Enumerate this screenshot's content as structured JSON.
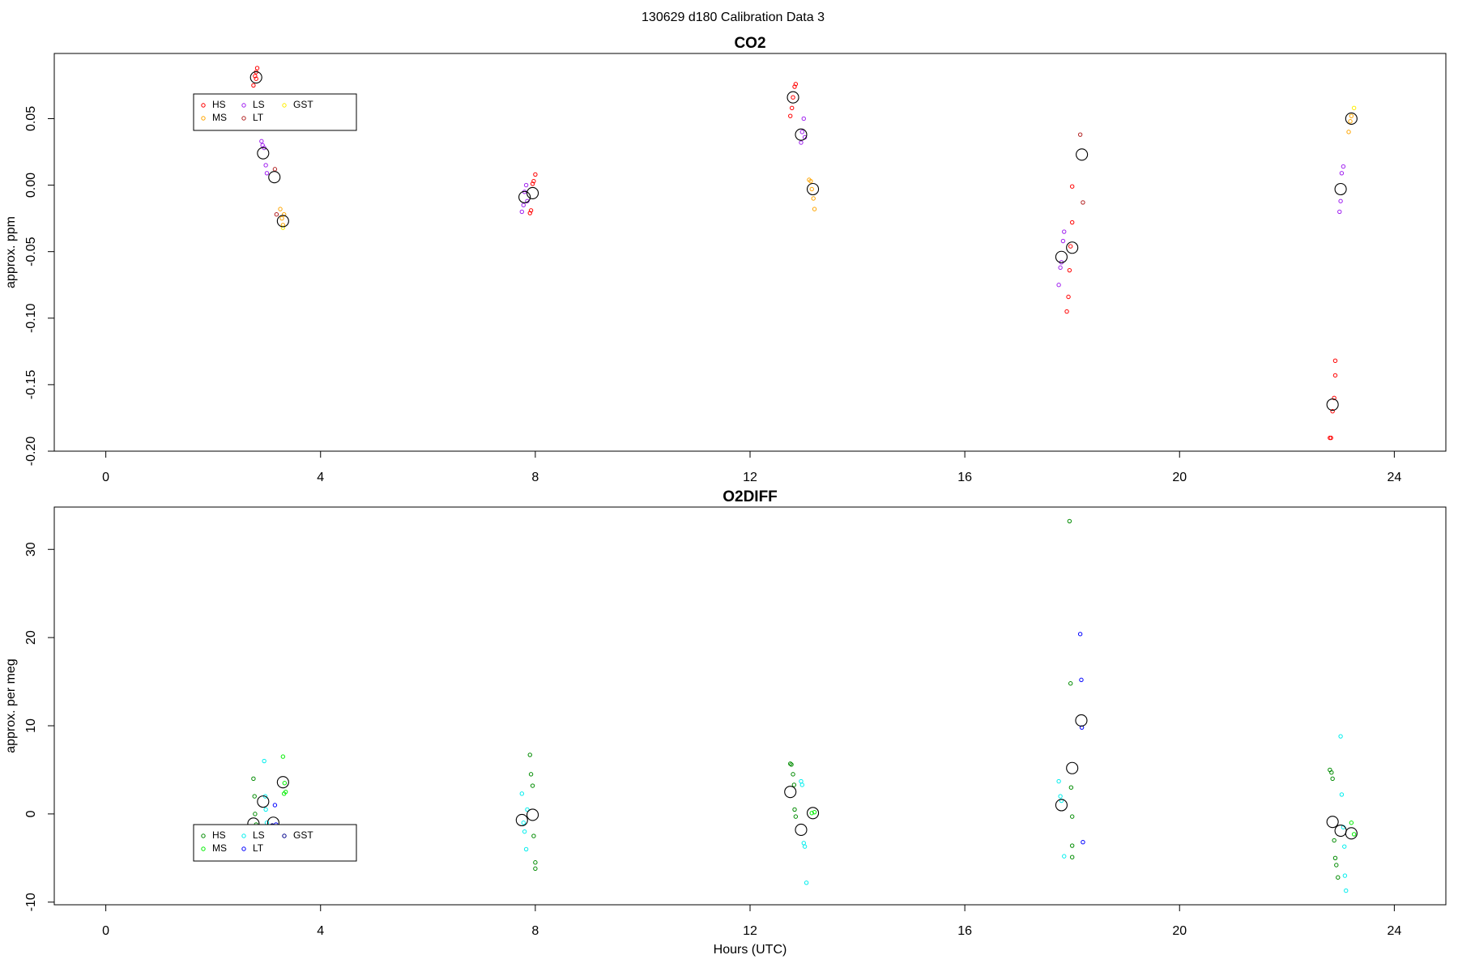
{
  "title": "130629   d180   Calibration Data 3",
  "chart_data": [
    {
      "type": "scatter",
      "title": "CO2",
      "ylabel": "approx. ppm",
      "xlim": [
        -0.96,
        24.96
      ],
      "ylim": [
        -0.2,
        0.099
      ],
      "xticks": [
        0,
        4,
        8,
        12,
        16,
        20,
        24
      ],
      "yticks": [
        {
          "value": -0.2,
          "label": "-0.20"
        },
        -0.15,
        {
          "value": -0.1,
          "label": "-0.10"
        },
        -0.05,
        {
          "value": 0,
          "label": "0.00"
        },
        0.05
      ],
      "legend_position": "topleft",
      "series": [
        {
          "name": "HS",
          "color": "#ff0000",
          "x": [
            2.75,
            2.78,
            2.8,
            2.82,
            2.8,
            7.9,
            7.92,
            7.95,
            7.97,
            8.0,
            12.75,
            12.78,
            12.8,
            12.83,
            12.85,
            17.9,
            17.93,
            17.95,
            17.97,
            18.0,
            18.0,
            22.8,
            22.82,
            22.85,
            22.88,
            22.9,
            22.9
          ],
          "values": [
            0.075,
            0.082,
            0.08,
            0.088,
            0.085,
            -0.021,
            -0.019,
            0.001,
            0.003,
            0.008,
            0.052,
            0.058,
            0.066,
            0.074,
            0.076,
            -0.095,
            -0.084,
            -0.064,
            -0.046,
            -0.028,
            -0.001,
            -0.19,
            -0.19,
            -0.17,
            -0.16,
            -0.143,
            -0.132
          ]
        },
        {
          "name": "MS",
          "color": "#ffa500",
          "x": [
            3.25,
            3.28,
            3.3,
            3.32,
            13.1,
            13.13,
            13.15,
            13.18,
            13.2,
            23.15,
            23.18,
            23.2
          ],
          "values": [
            -0.018,
            -0.025,
            -0.03,
            -0.022,
            0.004,
            0.003,
            -0.003,
            -0.01,
            -0.018,
            0.04,
            0.048,
            0.052
          ]
        },
        {
          "name": "LS",
          "color": "#a020f0",
          "x": [
            2.9,
            2.92,
            2.95,
            2.98,
            3.0,
            7.75,
            7.78,
            7.8,
            7.83,
            7.85,
            12.95,
            12.97,
            13.0,
            13.02,
            17.75,
            17.78,
            17.8,
            17.83,
            17.85,
            22.98,
            23.0,
            23.02,
            23.05
          ],
          "values": [
            0.033,
            0.03,
            0.028,
            0.015,
            0.009,
            -0.02,
            -0.015,
            -0.005,
            0.0,
            -0.012,
            0.032,
            0.04,
            0.05,
            0.036,
            -0.075,
            -0.062,
            -0.058,
            -0.042,
            -0.035,
            -0.02,
            -0.012,
            0.009,
            0.014
          ]
        },
        {
          "name": "LT",
          "color": "#b22222",
          "x": [
            3.15,
            3.18,
            18.15,
            18.2
          ],
          "values": [
            0.012,
            -0.022,
            0.038,
            -0.013
          ]
        },
        {
          "name": "GST",
          "color": "#ffee00",
          "x": [
            3.3,
            23.25
          ],
          "values": [
            -0.032,
            0.058
          ]
        },
        {
          "color": "#000000",
          "marker": "mean",
          "x": [
            2.8,
            2.93,
            3.14,
            3.3,
            7.8,
            7.95,
            12.8,
            12.95,
            13.17,
            17.8,
            18.0,
            18.18,
            22.85,
            23.0,
            23.2
          ],
          "values": [
            0.081,
            0.024,
            0.006,
            -0.027,
            -0.009,
            -0.006,
            0.066,
            0.038,
            -0.003,
            -0.054,
            -0.047,
            0.023,
            -0.165,
            -0.003,
            0.05
          ]
        }
      ]
    },
    {
      "type": "scatter",
      "title": "O2DIFF",
      "ylabel": "approx. per meg",
      "xlabel": "Hours (UTC)",
      "xlim": [
        -0.96,
        24.96
      ],
      "ylim": [
        -10.3,
        34.8
      ],
      "xticks": [
        0,
        4,
        8,
        12,
        16,
        20,
        24
      ],
      "yticks": [
        -10,
        0,
        10,
        20,
        30
      ],
      "legend_position": "bottomleft",
      "series": [
        {
          "name": "HS",
          "color": "#008b00",
          "x": [
            2.75,
            2.77,
            2.78,
            2.8,
            7.9,
            7.92,
            7.95,
            7.97,
            8.0,
            8.0,
            12.75,
            12.77,
            12.8,
            12.82,
            12.83,
            12.85,
            17.95,
            17.97,
            17.98,
            18.0,
            18.0,
            18.0,
            22.8,
            22.83,
            22.85,
            22.88,
            22.9,
            22.92,
            22.95
          ],
          "values": [
            4,
            2,
            0,
            -1.2,
            6.7,
            4.5,
            3.2,
            -2.5,
            -5.5,
            -6.2,
            5.7,
            5.6,
            4.5,
            3.3,
            0.5,
            -0.3,
            33.2,
            14.8,
            3,
            -0.3,
            -3.6,
            -4.9,
            5,
            4.7,
            4,
            -3,
            -5,
            -5.8,
            -7.2
          ]
        },
        {
          "name": "MS",
          "color": "#00ee00",
          "x": [
            3.3,
            3.32,
            3.33,
            3.35,
            13.15,
            13.2,
            23.2,
            23.25
          ],
          "values": [
            6.5,
            2.3,
            3.5,
            2.5,
            0.1,
            0.2,
            -1,
            -2.3
          ]
        },
        {
          "name": "LS",
          "color": "#00eeee",
          "x": [
            2.95,
            2.97,
            2.98,
            3.0,
            7.75,
            7.78,
            7.8,
            7.83,
            7.85,
            12.95,
            12.97,
            13.0,
            13.02,
            13.05,
            17.75,
            17.78,
            17.8,
            17.85,
            23.0,
            23.02,
            23.05,
            23.07,
            23.08,
            23.1
          ],
          "values": [
            6,
            2,
            0.5,
            -1,
            2.3,
            -1,
            -2,
            -4,
            0.5,
            3.7,
            3.3,
            -3.3,
            -3.7,
            -7.8,
            3.7,
            2,
            1.5,
            -4.8,
            8.8,
            2.2,
            -1.5,
            -3.7,
            -7,
            -8.7
          ]
        },
        {
          "name": "LT",
          "color": "#0000ff",
          "x": [
            3.15,
            3.17,
            18.15,
            18.17,
            18.18,
            18.2
          ],
          "values": [
            1,
            -1.2,
            20.4,
            15.2,
            9.8,
            -3.2
          ]
        },
        {
          "name": "GST",
          "color": "#00008b",
          "x": [
            3.1
          ],
          "values": [
            -1.3
          ]
        },
        {
          "color": "#000000",
          "marker": "mean",
          "x": [
            2.75,
            2.93,
            3.12,
            3.3,
            7.75,
            7.95,
            12.75,
            12.95,
            13.17,
            17.8,
            18.0,
            18.17,
            22.85,
            23.0,
            23.2
          ],
          "values": [
            -1.1,
            1.4,
            -1,
            3.6,
            -0.7,
            -0.1,
            2.5,
            -1.8,
            0.1,
            1,
            5.2,
            10.6,
            -0.9,
            -1.9,
            -2.2
          ]
        }
      ]
    }
  ]
}
